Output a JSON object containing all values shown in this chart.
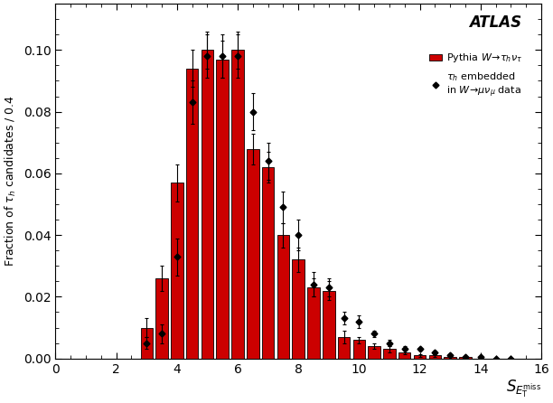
{
  "xlabel": "$S_{E_{\\mathrm{T}}^{\\mathrm{miss}}}$",
  "ylabel": "Fraction of $\\tau_h$ candidates / 0.4",
  "xlim": [
    0,
    16
  ],
  "ylim": [
    0,
    0.115
  ],
  "yticks": [
    0,
    0.02,
    0.04,
    0.06,
    0.08,
    0.1
  ],
  "xticks": [
    0,
    2,
    4,
    6,
    8,
    10,
    12,
    14,
    16
  ],
  "bin_width": 0.4,
  "bar_centers": [
    3.0,
    3.5,
    4.0,
    4.5,
    5.0,
    5.5,
    6.0,
    6.5,
    7.0,
    7.5,
    8.0,
    8.5,
    9.0,
    9.5,
    10.0,
    10.5,
    11.0,
    11.5,
    12.0,
    12.5,
    13.0,
    13.5,
    14.0,
    14.5,
    15.0,
    15.5
  ],
  "bar_heights": [
    0.01,
    0.026,
    0.057,
    0.094,
    0.1,
    0.097,
    0.1,
    0.068,
    0.062,
    0.04,
    0.032,
    0.023,
    0.022,
    0.007,
    0.006,
    0.004,
    0.003,
    0.002,
    0.001,
    0.001,
    0.0005,
    0.0005,
    0.0,
    0.0,
    0.0,
    0.0
  ],
  "bar_errors": [
    0.003,
    0.004,
    0.006,
    0.006,
    0.006,
    0.006,
    0.006,
    0.005,
    0.005,
    0.004,
    0.004,
    0.003,
    0.003,
    0.002,
    0.001,
    0.001,
    0.001,
    0.0005,
    0.0005,
    0.0005,
    0.0,
    0.0,
    0.0,
    0.0,
    0.0,
    0.0
  ],
  "bar_color": "#CC0000",
  "bar_edgecolor": "#CC0000",
  "dot_x": [
    3.0,
    3.5,
    4.0,
    4.5,
    5.0,
    5.5,
    6.0,
    6.5,
    7.0,
    7.5,
    8.0,
    8.5,
    9.0,
    9.5,
    10.0,
    10.5,
    11.0,
    11.5,
    12.0,
    12.5,
    13.0,
    13.5,
    14.0,
    14.5,
    15.0
  ],
  "dot_y": [
    0.005,
    0.008,
    0.033,
    0.083,
    0.098,
    0.098,
    0.098,
    0.08,
    0.064,
    0.049,
    0.04,
    0.024,
    0.023,
    0.013,
    0.012,
    0.008,
    0.005,
    0.003,
    0.003,
    0.002,
    0.001,
    0.0005,
    0.0005,
    0.0,
    0.0
  ],
  "dot_yerr": [
    0.002,
    0.003,
    0.006,
    0.007,
    0.007,
    0.007,
    0.007,
    0.006,
    0.006,
    0.005,
    0.005,
    0.004,
    0.003,
    0.002,
    0.002,
    0.001,
    0.001,
    0.001,
    0.0005,
    0.0005,
    0.0005,
    0.0,
    0.0,
    0.0,
    0.0
  ],
  "legend_label1": "Pythia $W\\!\\rightarrow\\!\\tau_h\\nu_\\tau$",
  "legend_label2": "$\\tau_h$ embedded\nin $W\\!\\rightarrow\\!\\mu\\nu_{\\mu}$ data",
  "background_color": "#ffffff",
  "figsize": [
    6.12,
    4.46
  ],
  "dpi": 100
}
